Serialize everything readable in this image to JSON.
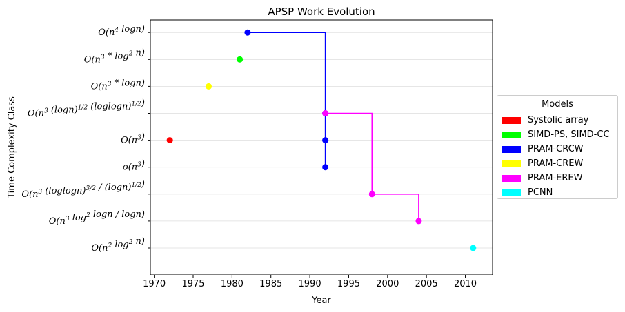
{
  "chart_data": {
    "type": "scatter",
    "title": "APSP Work Evolution",
    "xlabel": "Year",
    "ylabel": "Time Complexity Class",
    "xlim": [
      1969.5,
      2013.5
    ],
    "xticks": [
      1970,
      1975,
      1980,
      1985,
      1990,
      1995,
      2000,
      2005,
      2010
    ],
    "categories": [
      "O(n^2 log^2 n)",
      "O(n^3 log^2 logn / logn)",
      "O(n^3 (loglogn)^{3/2} / (logn)^{1/2})",
      "o(n^3)",
      "O(n^3)",
      "O(n^3 (logn)^{1/2} (loglogn)^{1/2})",
      "O(n^3 * logn)",
      "O(n^3 * log^2 n)",
      "O(n^4 logn)"
    ],
    "grid": "horizontal",
    "legend_title": "Models",
    "legend_position": "right",
    "series": [
      {
        "name": "Systolic array",
        "color": "#ff0000",
        "points": [
          [
            1972,
            4
          ]
        ],
        "line": false
      },
      {
        "name": "SIMD-PS, SIMD-CC",
        "color": "#00ff00",
        "points": [
          [
            1981,
            7
          ]
        ],
        "line": false
      },
      {
        "name": "PRAM-CRCW",
        "color": "#0000ff",
        "points": [
          [
            1982,
            8
          ],
          [
            1992,
            5
          ],
          [
            1992,
            4
          ],
          [
            1992,
            3
          ]
        ],
        "line": true
      },
      {
        "name": "PRAM-CREW",
        "color": "#ffff00",
        "points": [
          [
            1977,
            6
          ]
        ],
        "line": false
      },
      {
        "name": "PRAM-EREW",
        "color": "#ff00ff",
        "points": [
          [
            1992,
            5
          ],
          [
            1998,
            2
          ],
          [
            2004,
            1
          ]
        ],
        "line": true
      },
      {
        "name": "PCNN",
        "color": "#00ffff",
        "points": [
          [
            2011,
            0
          ]
        ],
        "line": false
      }
    ]
  }
}
